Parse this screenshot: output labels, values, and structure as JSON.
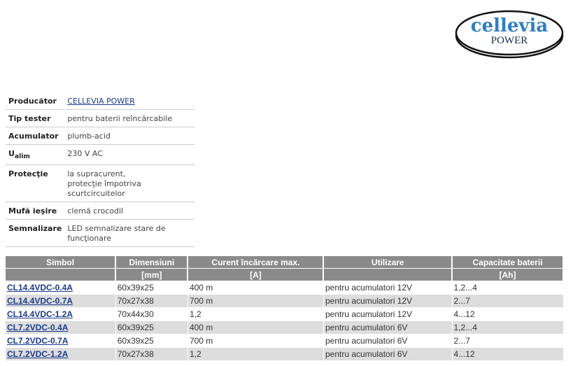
{
  "logo": {
    "brand": "cellevia",
    "sub": "POWER",
    "colors": {
      "brand": "#2f7fc0",
      "sub": "#1a2a4a"
    }
  },
  "specs": [
    {
      "key": "Producător",
      "value": "CELLEVIA POWER",
      "link": true
    },
    {
      "key": "Tip tester",
      "value": "pentru baterii reîncărcabile"
    },
    {
      "key": "Acumulator",
      "value": "plumb-acid"
    },
    {
      "key": "U",
      "key_sub": "alim",
      "value": "230 V AC"
    },
    {
      "key": "Protecţie",
      "value": "la supracurent,",
      "value2": "protecţie împotriva scurtcircuitelor"
    },
    {
      "key": "Mufă ieşire",
      "value": "clemă crocodil"
    },
    {
      "key": "Semnalizare",
      "value": "LED semnalizare stare de funcţionare"
    }
  ],
  "products": {
    "headers": [
      "Simbol",
      "Dimensiuni",
      "Curent încărcare max.",
      "Utilizare",
      "Capacitate baterii"
    ],
    "units": [
      "",
      "[mm]",
      "[A]",
      "",
      "[Ah]"
    ],
    "rows": [
      [
        "CL14.4VDC-0.4A",
        "60x39x25",
        "400 m",
        "pentru acumulatori 12V",
        "1,2...4"
      ],
      [
        "CL14.4VDC-0.7A",
        "70x27x38",
        "700 m",
        "pentru acumulatori 12V",
        "2...7"
      ],
      [
        "CL14.4VDC-1.2A",
        "70x44x30",
        "1,2",
        "pentru acumulatori 12V",
        "4...12"
      ],
      [
        "CL7.2VDC-0.4A",
        "60x39x25",
        "400 m",
        "pentru acumulatori 6V",
        "1,2...4"
      ],
      [
        "CL7.2VDC-0.7A",
        "60x39x25",
        "700 m",
        "pentru acumulatori 6V",
        "2...7"
      ],
      [
        "CL7.2VDC-1.2A",
        "70x27x38",
        "1,2",
        "pentru acumulatori 6V",
        "4...12"
      ]
    ]
  }
}
